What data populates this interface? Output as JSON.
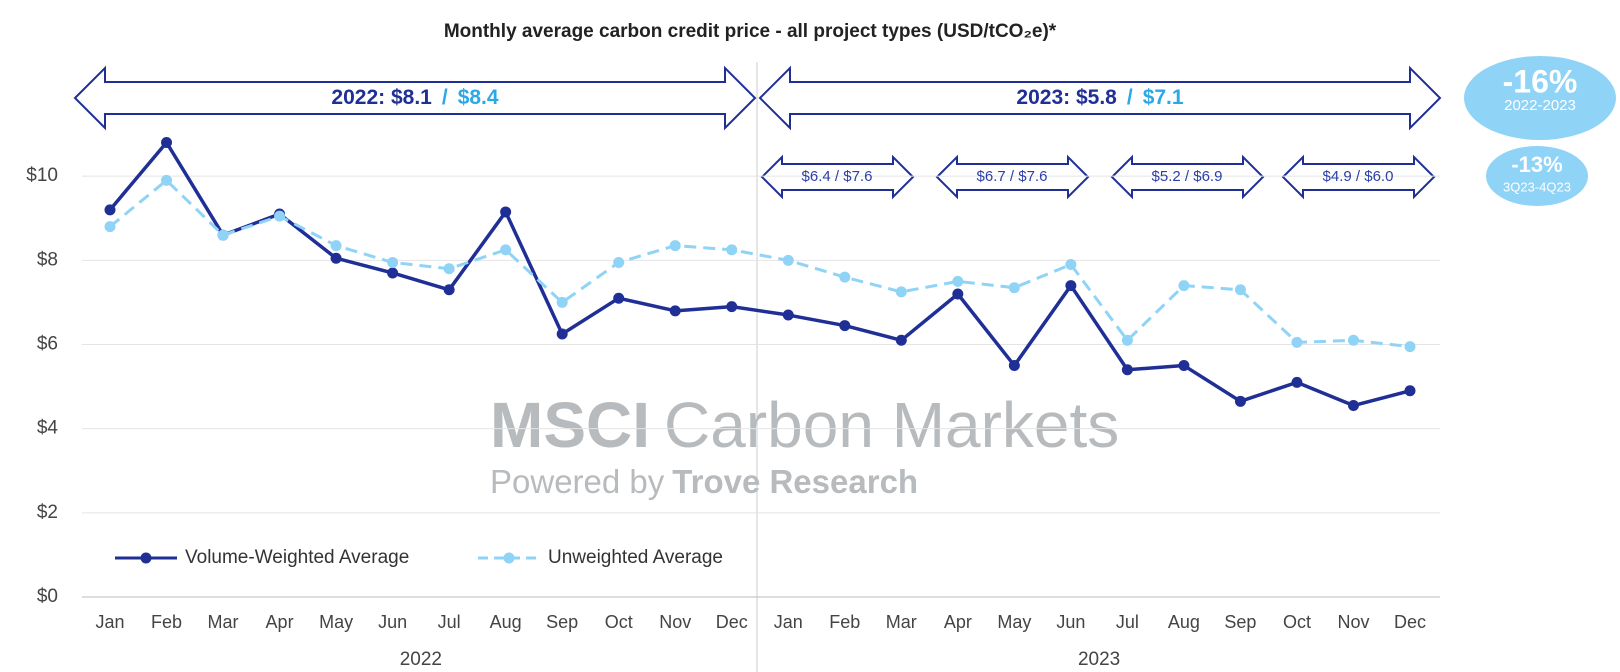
{
  "chart_data": {
    "type": "line",
    "title": "Monthly average carbon credit price - all project types (USD/tCO₂e)*",
    "categories": [
      "Jan",
      "Feb",
      "Mar",
      "Apr",
      "May",
      "Jun",
      "Jul",
      "Aug",
      "Sep",
      "Oct",
      "Nov",
      "Dec",
      "Jan",
      "Feb",
      "Mar",
      "Apr",
      "May",
      "Jun",
      "Jul",
      "Aug",
      "Sep",
      "Oct",
      "Nov",
      "Dec"
    ],
    "groups": [
      "2022",
      "2023"
    ],
    "series": [
      {
        "name": "Volume-Weighted Average",
        "color": "#1f2f96",
        "dashed": false,
        "values": [
          9.2,
          10.8,
          8.6,
          9.1,
          8.05,
          7.7,
          7.3,
          9.15,
          6.25,
          7.1,
          6.8,
          6.9,
          6.7,
          6.45,
          6.1,
          7.2,
          5.5,
          7.4,
          5.4,
          5.5,
          4.65,
          5.1,
          4.55,
          4.9
        ]
      },
      {
        "name": "Unweighted Average",
        "color": "#8fd3f7",
        "dashed": true,
        "values": [
          8.8,
          9.9,
          8.6,
          9.05,
          8.35,
          7.95,
          7.8,
          8.25,
          7.0,
          7.95,
          8.35,
          8.25,
          8.0,
          7.6,
          7.25,
          7.5,
          7.35,
          7.9,
          6.1,
          7.4,
          7.3,
          6.05,
          6.1,
          5.95
        ]
      }
    ],
    "ylim": [
      0,
      12
    ],
    "yticks": [
      {
        "value": 0,
        "label": "$0"
      },
      {
        "value": 2,
        "label": "$2"
      },
      {
        "value": 4,
        "label": "$4"
      },
      {
        "value": 6,
        "label": "$6"
      },
      {
        "value": 8,
        "label": "$8"
      },
      {
        "value": 10,
        "label": "$10"
      }
    ],
    "grid": true,
    "legend": "bottom-left",
    "separator": "/",
    "periods": [
      {
        "label": "2022: $8.1",
        "label2": "$8.4"
      },
      {
        "label": "2023: $5.8",
        "label2": "$7.1"
      }
    ],
    "quarters": [
      "$6.4 / $7.6",
      "$6.7 / $7.6",
      "$5.2 / $6.9",
      "$4.9 / $6.0"
    ],
    "badges": [
      {
        "value": "-16%",
        "label": "2022-2023"
      },
      {
        "value": "-13%",
        "label": "3Q23-4Q23"
      }
    ],
    "watermark": {
      "bold": "MSCI",
      "regular": "Carbon Markets",
      "sub_regular": "Powered by",
      "sub_bold": "Trove Research"
    }
  }
}
